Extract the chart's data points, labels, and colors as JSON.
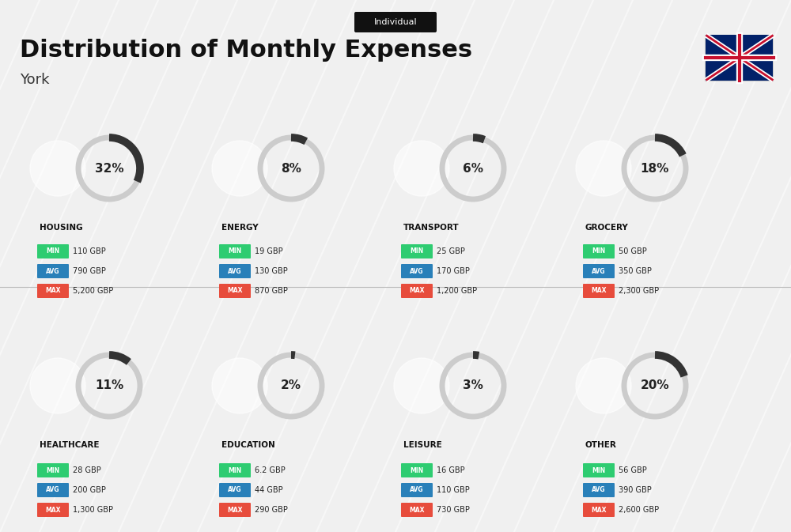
{
  "title": "Distribution of Monthly Expenses",
  "subtitle": "York",
  "tag": "Individual",
  "bg_color": "#f0f0f0",
  "categories": [
    {
      "name": "HOUSING",
      "pct": 32,
      "min": "110 GBP",
      "avg": "790 GBP",
      "max": "5,200 GBP",
      "row": 0,
      "col": 0
    },
    {
      "name": "ENERGY",
      "pct": 8,
      "min": "19 GBP",
      "avg": "130 GBP",
      "max": "870 GBP",
      "row": 0,
      "col": 1
    },
    {
      "name": "TRANSPORT",
      "pct": 6,
      "min": "25 GBP",
      "avg": "170 GBP",
      "max": "1,200 GBP",
      "row": 0,
      "col": 2
    },
    {
      "name": "GROCERY",
      "pct": 18,
      "min": "50 GBP",
      "avg": "350 GBP",
      "max": "2,300 GBP",
      "row": 0,
      "col": 3
    },
    {
      "name": "HEALTHCARE",
      "pct": 11,
      "min": "28 GBP",
      "avg": "200 GBP",
      "max": "1,300 GBP",
      "row": 1,
      "col": 0
    },
    {
      "name": "EDUCATION",
      "pct": 2,
      "min": "6.2 GBP",
      "avg": "44 GBP",
      "max": "290 GBP",
      "row": 1,
      "col": 1
    },
    {
      "name": "LEISURE",
      "pct": 3,
      "min": "16 GBP",
      "avg": "110 GBP",
      "max": "730 GBP",
      "row": 1,
      "col": 2
    },
    {
      "name": "OTHER",
      "pct": 20,
      "min": "56 GBP",
      "avg": "390 GBP",
      "max": "2,600 GBP",
      "row": 1,
      "col": 3
    }
  ],
  "color_min": "#2ecc71",
  "color_avg": "#2980b9",
  "color_max": "#e74c3c",
  "arc_color": "#333333",
  "arc_bg_color": "#cccccc"
}
